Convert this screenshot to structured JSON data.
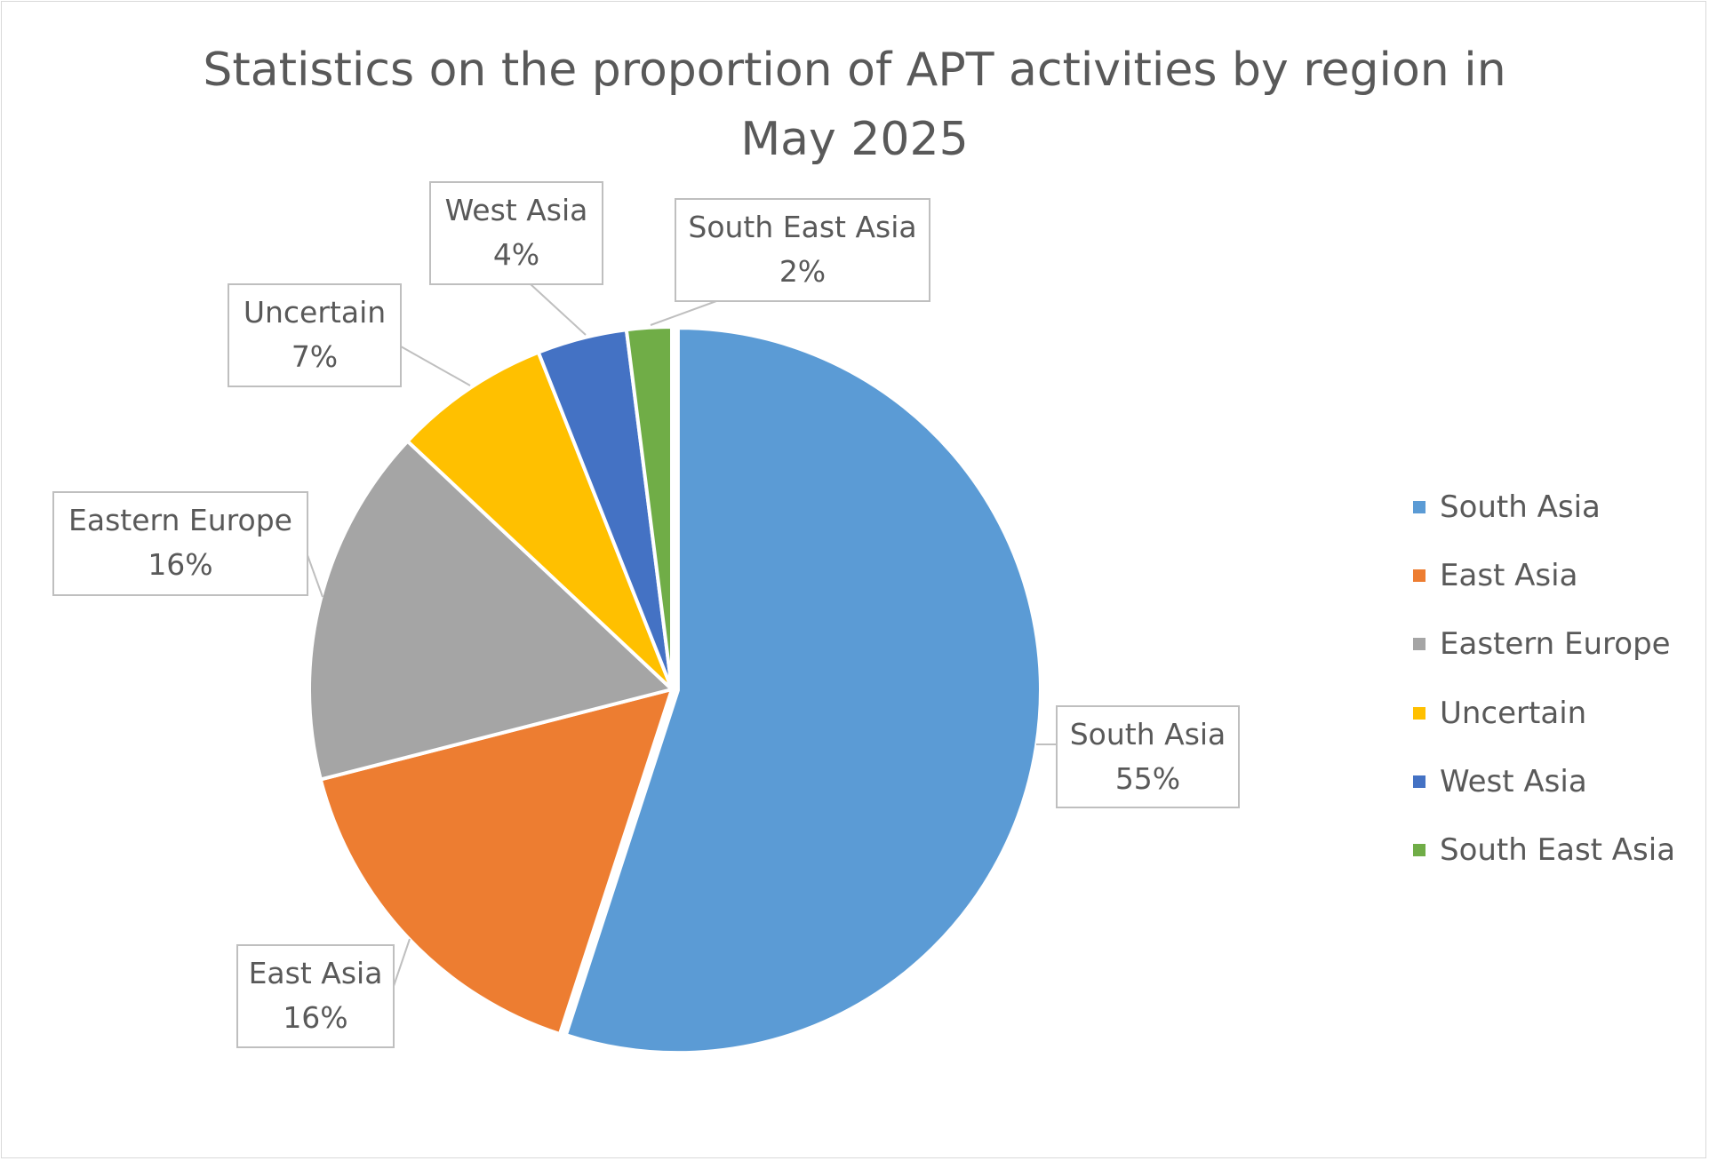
{
  "chart_data": {
    "type": "pie",
    "title_lines": [
      "Statistics on the proportion of APT activities by region in",
      "May 2025"
    ],
    "categories": [
      "South Asia",
      "East Asia",
      "Eastern Europe",
      "Uncertain",
      "West Asia",
      "South East Asia"
    ],
    "values": [
      55,
      16,
      16,
      7,
      4,
      2
    ],
    "value_labels": [
      "55%",
      "16%",
      "16%",
      "7%",
      "4%",
      "2%"
    ],
    "colors": [
      "#5B9BD5",
      "#ED7D31",
      "#A5A5A5",
      "#FFC000",
      "#4472C4",
      "#70AD47"
    ],
    "start_angle_deg": 0,
    "direction": "clockwise",
    "legend_position": "right"
  }
}
